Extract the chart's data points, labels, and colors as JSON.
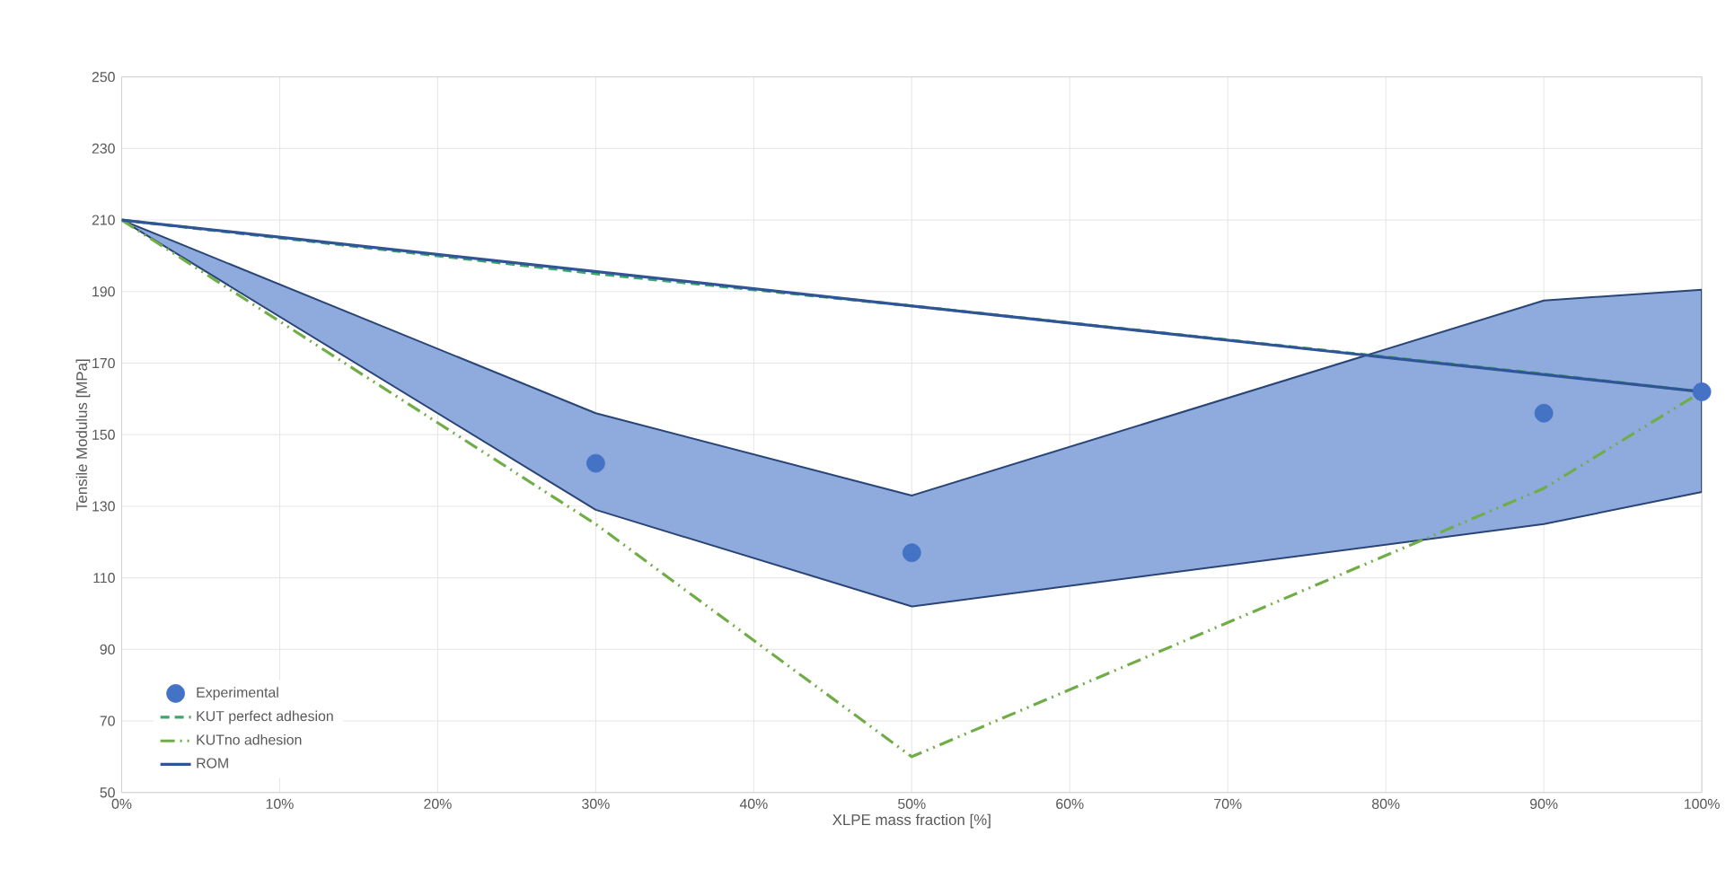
{
  "chart_data": {
    "type": "line",
    "xlabel": "XLPE mass fraction [%]",
    "ylabel": "Tensile Modulus [MPa]",
    "xlim": [
      0,
      100
    ],
    "ylim": [
      50,
      250
    ],
    "xticks": [
      {
        "value": 0,
        "label": "0%"
      },
      {
        "value": 10,
        "label": "10%"
      },
      {
        "value": 20,
        "label": "20%"
      },
      {
        "value": 30,
        "label": "30%"
      },
      {
        "value": 40,
        "label": "40%"
      },
      {
        "value": 50,
        "label": "50%"
      },
      {
        "value": 60,
        "label": "60%"
      },
      {
        "value": 70,
        "label": "70%"
      },
      {
        "value": 80,
        "label": "80%"
      },
      {
        "value": 90,
        "label": "90%"
      },
      {
        "value": 100,
        "label": "100%"
      }
    ],
    "yticks": [
      50,
      70,
      90,
      110,
      130,
      150,
      170,
      190,
      210,
      230,
      250
    ],
    "grid": true,
    "legend": "bottom left",
    "series": [
      {
        "name": "Experimental",
        "type": "scatter",
        "color": "#4472c4",
        "x": [
          0,
          30,
          50,
          90,
          100
        ],
        "values": [
          null,
          142,
          117,
          156,
          162
        ],
        "lower": [
          210,
          129,
          102,
          125,
          134
        ],
        "upper": [
          210,
          156,
          133,
          187.5,
          190.5
        ]
      },
      {
        "name": "KUT perfect adhesion",
        "type": "line",
        "line_style": "dashed",
        "color": "#3fa66a",
        "x": [
          0,
          30,
          50,
          90,
          100
        ],
        "values": [
          210,
          195,
          186,
          167,
          162
        ]
      },
      {
        "name": "KUTno adhesion",
        "type": "line",
        "line_style": "dashdot",
        "color": "#70ad47",
        "x": [
          0,
          30,
          50,
          90,
          100
        ],
        "values": [
          210,
          125,
          60,
          135,
          162
        ]
      },
      {
        "name": "ROM",
        "type": "line",
        "line_style": "solid",
        "color": "#2f5597",
        "x": [
          0,
          100
        ],
        "values": [
          210,
          162
        ]
      }
    ]
  }
}
